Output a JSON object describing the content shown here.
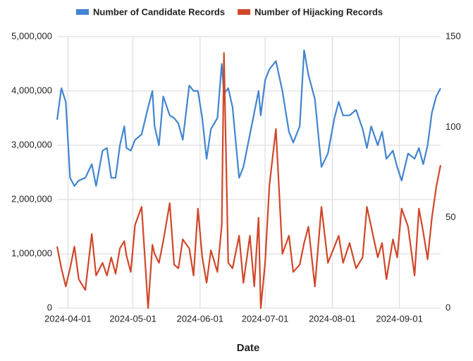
{
  "chart_data": {
    "type": "line",
    "x_label": "Date",
    "x": [
      "2024-03-27",
      "2024-03-29",
      "2024-03-31",
      "2024-04-02",
      "2024-04-04",
      "2024-04-06",
      "2024-04-09",
      "2024-04-12",
      "2024-04-14",
      "2024-04-17",
      "2024-04-19",
      "2024-04-21",
      "2024-04-23",
      "2024-04-25",
      "2024-04-27",
      "2024-04-28",
      "2024-04-30",
      "2024-05-02",
      "2024-05-05",
      "2024-05-08",
      "2024-05-10",
      "2024-05-11",
      "2024-05-13",
      "2024-05-15",
      "2024-05-18",
      "2024-05-20",
      "2024-05-22",
      "2024-05-24",
      "2024-05-27",
      "2024-05-29",
      "2024-05-31",
      "2024-06-02",
      "2024-06-04",
      "2024-06-06",
      "2024-06-09",
      "2024-06-11",
      "2024-06-12",
      "2024-06-14",
      "2024-06-16",
      "2024-06-19",
      "2024-06-21",
      "2024-06-24",
      "2024-06-26",
      "2024-06-28",
      "2024-06-29",
      "2024-07-01",
      "2024-07-03",
      "2024-07-06",
      "2024-07-09",
      "2024-07-12",
      "2024-07-14",
      "2024-07-17",
      "2024-07-19",
      "2024-07-21",
      "2024-07-24",
      "2024-07-27",
      "2024-07-30",
      "2024-08-02",
      "2024-08-04",
      "2024-08-06",
      "2024-08-09",
      "2024-08-12",
      "2024-08-15",
      "2024-08-17",
      "2024-08-19",
      "2024-08-22",
      "2024-08-24",
      "2024-08-26",
      "2024-08-29",
      "2024-08-31",
      "2024-09-02",
      "2024-09-05",
      "2024-09-08",
      "2024-09-10",
      "2024-09-12",
      "2024-09-14",
      "2024-09-16",
      "2024-09-18",
      "2024-09-20"
    ],
    "series": [
      {
        "name": "Number of Candidate Records",
        "color": "#4285d0",
        "values": [
          3470000,
          4050000,
          3800000,
          2400000,
          2250000,
          2350000,
          2400000,
          2650000,
          2250000,
          2900000,
          2950000,
          2400000,
          2400000,
          3000000,
          3350000,
          2950000,
          2900000,
          3100000,
          3200000,
          3700000,
          4000000,
          3350000,
          3000000,
          3900000,
          3550000,
          3500000,
          3400000,
          3100000,
          4100000,
          4000000,
          4000000,
          3500000,
          2750000,
          3300000,
          3500000,
          4500000,
          3950000,
          4050000,
          3700000,
          2400000,
          2600000,
          3200000,
          3600000,
          4000000,
          3550000,
          4200000,
          4400000,
          4550000,
          4000000,
          3250000,
          3050000,
          3350000,
          4750000,
          4300000,
          3850000,
          2600000,
          2850000,
          3500000,
          3800000,
          3550000,
          3550000,
          3650000,
          3300000,
          2950000,
          3350000,
          3000000,
          3250000,
          2750000,
          2900000,
          2600000,
          2350000,
          2850000,
          2750000,
          2950000,
          2650000,
          3000000,
          3600000,
          3900000,
          4050000
        ]
      },
      {
        "name": "Number of Hijacking Records",
        "color": "#d0472a",
        "axis": "y2",
        "values": [
          34,
          22,
          12,
          22,
          34,
          16,
          10,
          41,
          18,
          25,
          18,
          28,
          19,
          33,
          37,
          29,
          20,
          46,
          56,
          0,
          35,
          30,
          25,
          37,
          58,
          24,
          22,
          38,
          33,
          18,
          55,
          28,
          14,
          32,
          20,
          46,
          141,
          25,
          22,
          40,
          14,
          40,
          12,
          50,
          0,
          25,
          68,
          99,
          30,
          40,
          20,
          24,
          36,
          45,
          12,
          56,
          25,
          34,
          40,
          25,
          36,
          22,
          28,
          56,
          45,
          28,
          36,
          16,
          38,
          28,
          55,
          45,
          18,
          55,
          42,
          27,
          50,
          67,
          79
        ]
      }
    ],
    "xlim": [
      "2024-03-27",
      "2024-09-20"
    ],
    "xticks": [
      "2024-04-01",
      "2024-05-01",
      "2024-06-01",
      "2024-07-01",
      "2024-08-01",
      "2024-09-01"
    ],
    "ylim": [
      0,
      5000000
    ],
    "yticks": [
      0,
      {
        "value": 1000000,
        "label": "1,000,000"
      },
      {
        "value": 2000000,
        "label": "2,000,000"
      },
      {
        "value": 3000000,
        "label": "3,000,000"
      },
      {
        "value": 4000000,
        "label": "4,000,000"
      },
      {
        "value": 5000000,
        "label": "5,000,000"
      }
    ],
    "y2lim": [
      0,
      150
    ],
    "y2ticks": [
      0,
      50,
      100,
      150
    ],
    "grid": true,
    "legend": "top"
  }
}
